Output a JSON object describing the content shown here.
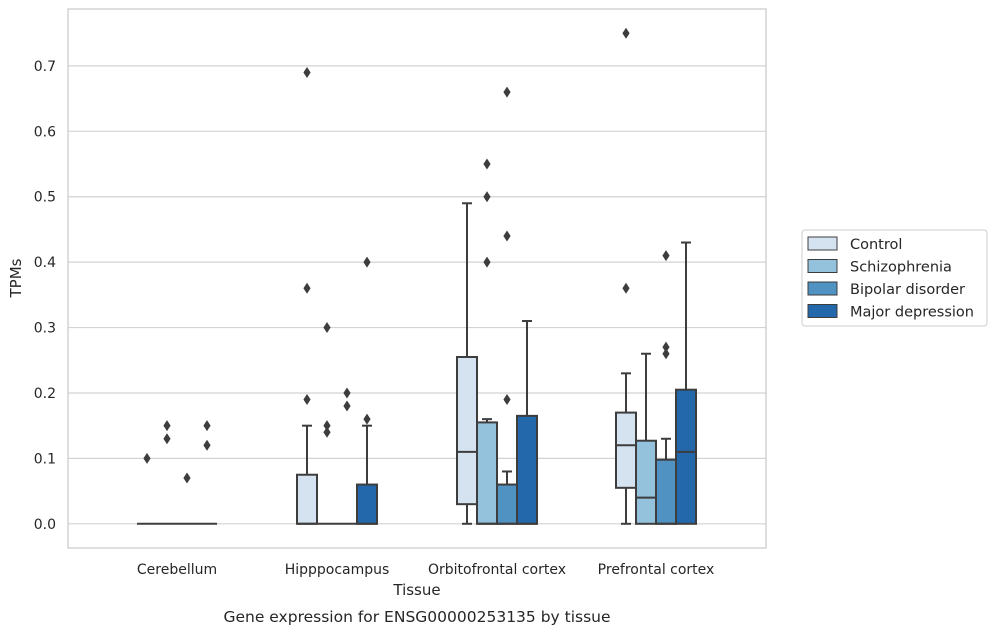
{
  "chart_data": {
    "type": "boxplot",
    "title": "",
    "caption": "Gene expression for ENSG00000253135 by tissue",
    "xlabel": "Tissue",
    "ylabel": "TPMs",
    "ylim": [
      -0.037,
      0.787
    ],
    "yticks": [
      0.0,
      0.1,
      0.2,
      0.3,
      0.4,
      0.5,
      0.6,
      0.7
    ],
    "ytick_labels": [
      "0.0",
      "0.1",
      "0.2",
      "0.3",
      "0.4",
      "0.5",
      "0.6",
      "0.7"
    ],
    "grid": "horizontal",
    "legend_position": "right",
    "categories": [
      "Cerebellum",
      "Hipppocampus",
      "Orbitofrontal cortex",
      "Prefrontal cortex"
    ],
    "series": [
      {
        "name": "Control",
        "color": "#d5e3f1",
        "boxes": [
          {
            "whislo": 0.0,
            "q1": 0.0,
            "med": 0.0,
            "q3": 0.0,
            "whishi": 0.0,
            "fliers": [
              0.1
            ]
          },
          {
            "whislo": 0.0,
            "q1": 0.0,
            "med": 0.0,
            "q3": 0.075,
            "whishi": 0.15,
            "fliers": [
              0.19,
              0.36,
              0.69
            ]
          },
          {
            "whislo": 0.0,
            "q1": 0.03,
            "med": 0.11,
            "q3": 0.255,
            "whishi": 0.49,
            "fliers": []
          },
          {
            "whislo": 0.0,
            "q1": 0.055,
            "med": 0.12,
            "q3": 0.17,
            "whishi": 0.23,
            "fliers": [
              0.36,
              0.75
            ]
          }
        ]
      },
      {
        "name": "Schizophrenia",
        "color": "#94c1dc",
        "boxes": [
          {
            "whislo": 0.0,
            "q1": 0.0,
            "med": 0.0,
            "q3": 0.0,
            "whishi": 0.0,
            "fliers": [
              0.13,
              0.15
            ]
          },
          {
            "whislo": 0.0,
            "q1": 0.0,
            "med": 0.0,
            "q3": 0.0,
            "whishi": 0.0,
            "fliers": [
              0.14,
              0.15,
              0.3
            ]
          },
          {
            "whislo": 0.0,
            "q1": 0.0,
            "med": 0.0,
            "q3": 0.155,
            "whishi": 0.16,
            "fliers": [
              0.4,
              0.5,
              0.55
            ]
          },
          {
            "whislo": 0.0,
            "q1": 0.0,
            "med": 0.04,
            "q3": 0.127,
            "whishi": 0.26,
            "fliers": []
          }
        ]
      },
      {
        "name": "Bipolar disorder",
        "color": "#5093c2",
        "boxes": [
          {
            "whislo": 0.0,
            "q1": 0.0,
            "med": 0.0,
            "q3": 0.0,
            "whishi": 0.0,
            "fliers": [
              0.07
            ]
          },
          {
            "whislo": 0.0,
            "q1": 0.0,
            "med": 0.0,
            "q3": 0.0,
            "whishi": 0.0,
            "fliers": [
              0.18,
              0.2
            ]
          },
          {
            "whislo": 0.0,
            "q1": 0.0,
            "med": 0.0,
            "q3": 0.06,
            "whishi": 0.08,
            "fliers": [
              0.19,
              0.44,
              0.66
            ]
          },
          {
            "whislo": 0.0,
            "q1": 0.0,
            "med": 0.0,
            "q3": 0.098,
            "whishi": 0.13,
            "fliers": [
              0.26,
              0.27,
              0.41
            ]
          }
        ]
      },
      {
        "name": "Major depression",
        "color": "#2268ab",
        "boxes": [
          {
            "whislo": 0.0,
            "q1": 0.0,
            "med": 0.0,
            "q3": 0.0,
            "whishi": 0.0,
            "fliers": [
              0.12,
              0.15
            ]
          },
          {
            "whislo": 0.0,
            "q1": 0.0,
            "med": 0.0,
            "q3": 0.06,
            "whishi": 0.15,
            "fliers": [
              0.16,
              0.4
            ]
          },
          {
            "whislo": 0.0,
            "q1": 0.0,
            "med": 0.0,
            "q3": 0.165,
            "whishi": 0.31,
            "fliers": []
          },
          {
            "whislo": 0.0,
            "q1": 0.0,
            "med": 0.11,
            "q3": 0.205,
            "whishi": 0.43,
            "fliers": []
          }
        ]
      }
    ]
  }
}
